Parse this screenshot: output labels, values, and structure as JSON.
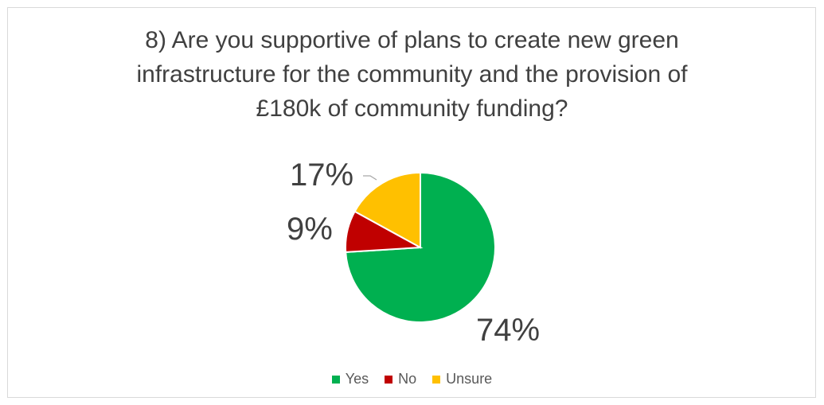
{
  "chart_data": {
    "type": "pie",
    "title": "8) Are you supportive of plans to create new green\ninfrastructure for the community and the provision of\n£180k of community funding?",
    "categories": [
      "Yes",
      "No",
      "Unsure"
    ],
    "values": [
      74,
      9,
      17
    ],
    "data_labels": [
      "74%",
      "9%",
      "17%"
    ],
    "colors": [
      "#00b050",
      "#c00000",
      "#ffc000"
    ],
    "legend_placement": "bottom",
    "start_angle": "12 o'clock, clockwise"
  }
}
